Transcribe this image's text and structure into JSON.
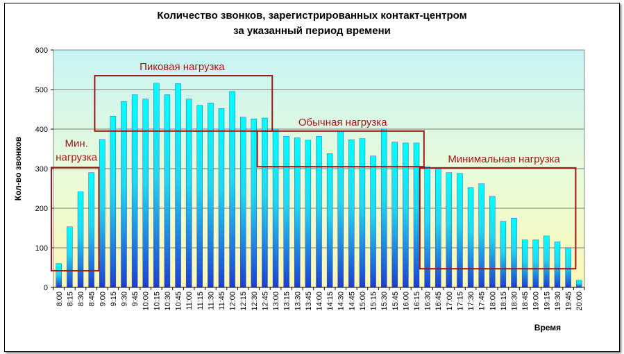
{
  "chart_data": {
    "type": "bar",
    "title_line1": "Количество звонков, зарегистрированных контакт-центром",
    "title_line2": "за указанный период времени",
    "xlabel": "Время",
    "ylabel": "Кол-во звонков",
    "ylim": [
      0,
      600
    ],
    "yticks": [
      0,
      100,
      200,
      300,
      400,
      500,
      600
    ],
    "grid": true,
    "categories": [
      "8:00",
      "8:15",
      "8:30",
      "8:45",
      "9:00",
      "9:15",
      "9:30",
      "9:45",
      "10:00",
      "10:15",
      "10:30",
      "10:45",
      "11:00",
      "11:15",
      "11:30",
      "11:45",
      "12:00",
      "12:15",
      "12:30",
      "12:45",
      "13:00",
      "13:15",
      "13:30",
      "13:45",
      "14:00",
      "14:15",
      "14:30",
      "14:45",
      "15:00",
      "15:15",
      "15:30",
      "15:45",
      "16:00",
      "16:15",
      "16:30",
      "16:45",
      "17:00",
      "17:15",
      "17:30",
      "17:45",
      "18:00",
      "18:15",
      "18:30",
      "18:45",
      "19:00",
      "19:15",
      "19:30",
      "19:45",
      "20:00"
    ],
    "values": [
      60,
      153,
      242,
      290,
      374,
      433,
      470,
      487,
      476,
      516,
      487,
      515,
      476,
      460,
      466,
      452,
      495,
      430,
      426,
      428,
      400,
      382,
      378,
      372,
      382,
      338,
      395,
      373,
      376,
      332,
      400,
      367,
      365,
      365,
      305,
      300,
      290,
      288,
      252,
      262,
      230,
      167,
      175,
      120,
      120,
      130,
      115,
      100,
      18
    ],
    "bar_color_top": "#00ffff",
    "bar_color_bottom": "#1f3fd0",
    "annotations": [
      {
        "label": "Пиковая нагрузка",
        "from": "9:00",
        "to": "12:45",
        "ymin": 395,
        "ymax": 535
      },
      {
        "label": "Обычная нагрузка",
        "from": "12:45",
        "to": "16:15",
        "ymin": 305,
        "ymax": 395
      },
      {
        "label": "Мин. нагрузка",
        "from": "8:00",
        "to": "8:45",
        "ymin": 42,
        "ymax": 303
      },
      {
        "label": "Минимальная нагрузка",
        "from": "16:30",
        "to": "19:45",
        "ymin": 47,
        "ymax": 302
      }
    ]
  }
}
